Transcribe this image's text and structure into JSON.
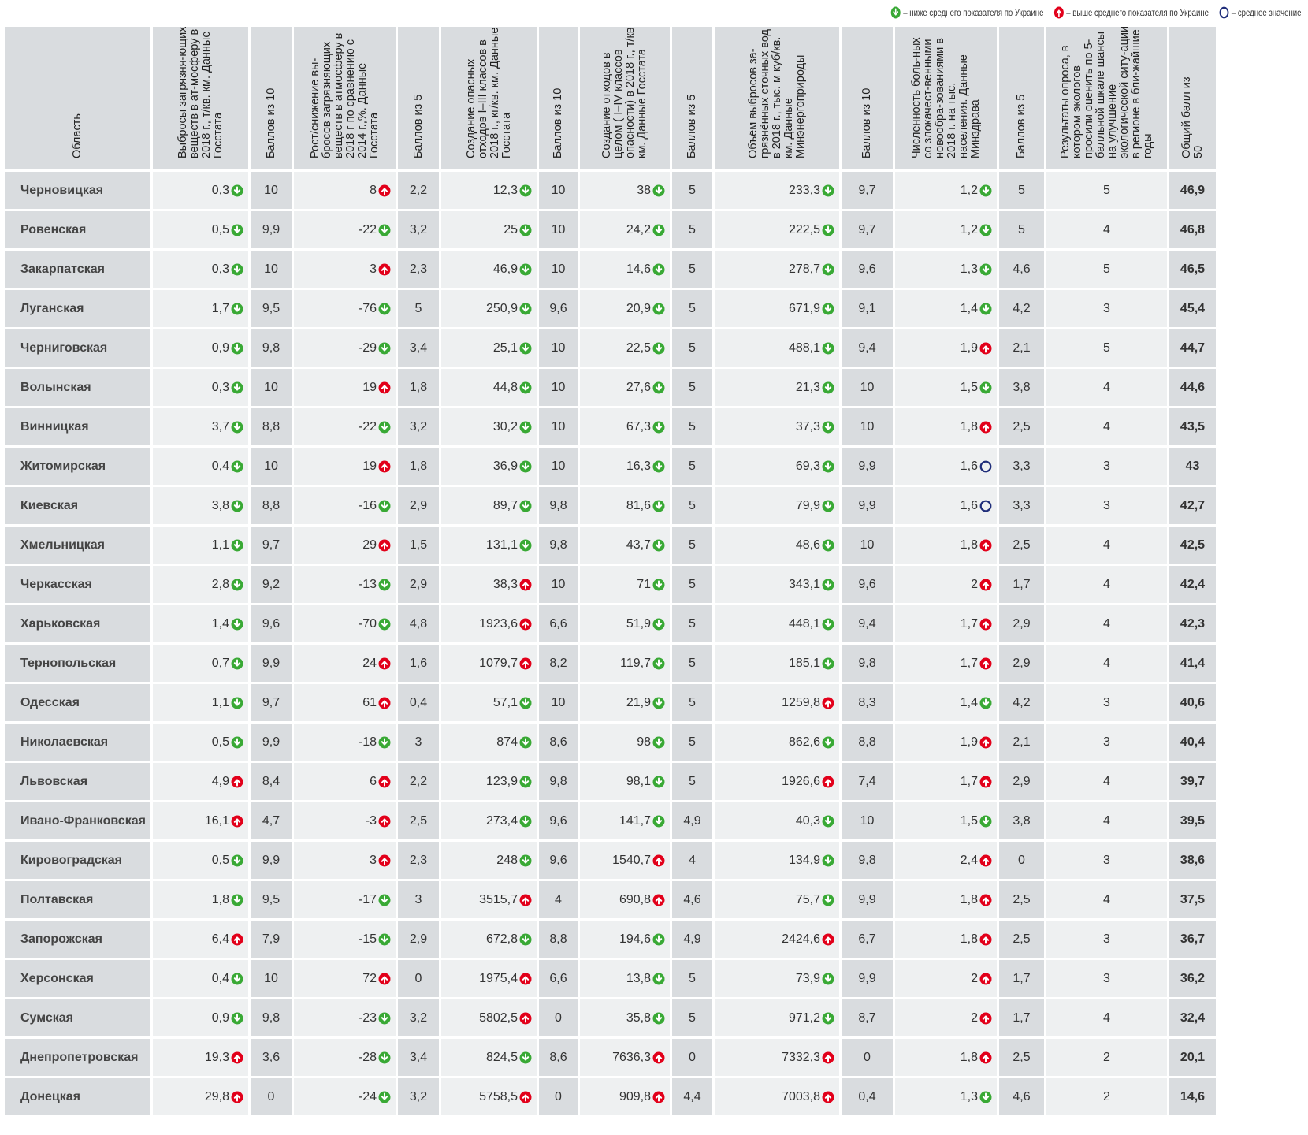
{
  "legend": {
    "below": "– ниже среднего показателя по Украине",
    "above": "– выше среднего показателя по Украине",
    "average": "– среднее значение"
  },
  "colors": {
    "down": "#39a935",
    "up": "#e2001a",
    "avg": "#1f2d7a",
    "header_bg": "#d9dcdf",
    "cell_bg": "#eef0f1"
  },
  "headers": [
    "Область",
    "Выбросы загрязня-ющих веществ в ат-мосферу в 2018 г., т/кв. км. Данные Госстата",
    "Баллов из 10",
    "Рост/снижение вы-бросов загрязняющих веществ в атмосферу в 2018 г по сравнению с 2014 г.,%. Данные Госстата",
    "Баллов из 5",
    "Создание опасных отходов I–III классов в 2018 г., кг/кв. км. Данные Госстата",
    "Баллов из 10",
    "Создание отходов в целом ( I–IV классов опасности) в 2018 г., т/кв. км. Данные Госстата",
    "Баллов из 5",
    "Объём выбросов за-грязнённых сточных вод в 2018 г., тыс. м куб/кв. км. Данные Минэнергоприроды",
    "Баллов из 10",
    "Численность боль-ных со злокачест-венными новообра-зованиями в 2018 г. на тыс. населения. Данные Минздрава",
    "Баллов из 5",
    "Результаты опроса, в котором экологов просили оценить по 5-балльной шкале шансы на улучшение экологической ситу-ации в регионе в бли-жайшие годы",
    "Общий балл из 50"
  ],
  "rows": [
    {
      "region": "Черновицкая",
      "c1": "0,3",
      "i1": "down",
      "s1": "10",
      "c2": "8",
      "i2": "up",
      "s2": "2,2",
      "c3": "12,3",
      "i3": "down",
      "s3": "10",
      "c4": "38",
      "i4": "down",
      "s4": "5",
      "c5": "233,3",
      "i5": "down",
      "s5": "9,7",
      "c6": "1,2",
      "i6": "down",
      "s6": "5",
      "survey": "5",
      "total": "46,9"
    },
    {
      "region": "Ровенская",
      "c1": "0,5",
      "i1": "down",
      "s1": "9,9",
      "c2": "-22",
      "i2": "down",
      "s2": "3,2",
      "c3": "25",
      "i3": "down",
      "s3": "10",
      "c4": "24,2",
      "i4": "down",
      "s4": "5",
      "c5": "222,5",
      "i5": "down",
      "s5": "9,7",
      "c6": "1,2",
      "i6": "down",
      "s6": "5",
      "survey": "4",
      "total": "46,8"
    },
    {
      "region": "Закарпатская",
      "c1": "0,3",
      "i1": "down",
      "s1": "10",
      "c2": "3",
      "i2": "up",
      "s2": "2,3",
      "c3": "46,9",
      "i3": "down",
      "s3": "10",
      "c4": "14,6",
      "i4": "down",
      "s4": "5",
      "c5": "278,7",
      "i5": "down",
      "s5": "9,6",
      "c6": "1,3",
      "i6": "down",
      "s6": "4,6",
      "survey": "5",
      "total": "46,5"
    },
    {
      "region": "Луганская",
      "c1": "1,7",
      "i1": "down",
      "s1": "9,5",
      "c2": "-76",
      "i2": "down",
      "s2": "5",
      "c3": "250,9",
      "i3": "down",
      "s3": "9,6",
      "c4": "20,9",
      "i4": "down",
      "s4": "5",
      "c5": "671,9",
      "i5": "down",
      "s5": "9,1",
      "c6": "1,4",
      "i6": "down",
      "s6": "4,2",
      "survey": "3",
      "total": "45,4"
    },
    {
      "region": "Черниговская",
      "c1": "0,9",
      "i1": "down",
      "s1": "9,8",
      "c2": "-29",
      "i2": "down",
      "s2": "3,4",
      "c3": "25,1",
      "i3": "down",
      "s3": "10",
      "c4": "22,5",
      "i4": "down",
      "s4": "5",
      "c5": "488,1",
      "i5": "down",
      "s5": "9,4",
      "c6": "1,9",
      "i6": "up",
      "s6": "2,1",
      "survey": "5",
      "total": "44,7"
    },
    {
      "region": "Волынская",
      "c1": "0,3",
      "i1": "down",
      "s1": "10",
      "c2": "19",
      "i2": "up",
      "s2": "1,8",
      "c3": "44,8",
      "i3": "down",
      "s3": "10",
      "c4": "27,6",
      "i4": "down",
      "s4": "5",
      "c5": "21,3",
      "i5": "down",
      "s5": "10",
      "c6": "1,5",
      "i6": "down",
      "s6": "3,8",
      "survey": "4",
      "total": "44,6"
    },
    {
      "region": "Винницкая",
      "c1": "3,7",
      "i1": "down",
      "s1": "8,8",
      "c2": "-22",
      "i2": "down",
      "s2": "3,2",
      "c3": "30,2",
      "i3": "down",
      "s3": "10",
      "c4": "67,3",
      "i4": "down",
      "s4": "5",
      "c5": "37,3",
      "i5": "down",
      "s5": "10",
      "c6": "1,8",
      "i6": "up",
      "s6": "2,5",
      "survey": "4",
      "total": "43,5"
    },
    {
      "region": "Житомирская",
      "c1": "0,4",
      "i1": "down",
      "s1": "10",
      "c2": "19",
      "i2": "up",
      "s2": "1,8",
      "c3": "36,9",
      "i3": "down",
      "s3": "10",
      "c4": "16,3",
      "i4": "down",
      "s4": "5",
      "c5": "69,3",
      "i5": "down",
      "s5": "9,9",
      "c6": "1,6",
      "i6": "avg",
      "s6": "3,3",
      "survey": "3",
      "total": "43"
    },
    {
      "region": "Киевская",
      "c1": "3,8",
      "i1": "down",
      "s1": "8,8",
      "c2": "-16",
      "i2": "down",
      "s2": "2,9",
      "c3": "89,7",
      "i3": "down",
      "s3": "9,8",
      "c4": "81,6",
      "i4": "down",
      "s4": "5",
      "c5": "79,9",
      "i5": "down",
      "s5": "9,9",
      "c6": "1,6",
      "i6": "avg",
      "s6": "3,3",
      "survey": "3",
      "total": "42,7"
    },
    {
      "region": "Хмельницкая",
      "c1": "1,1",
      "i1": "down",
      "s1": "9,7",
      "c2": "29",
      "i2": "up",
      "s2": "1,5",
      "c3": "131,1",
      "i3": "down",
      "s3": "9,8",
      "c4": "43,7",
      "i4": "down",
      "s4": "5",
      "c5": "48,6",
      "i5": "down",
      "s5": "10",
      "c6": "1,8",
      "i6": "up",
      "s6": "2,5",
      "survey": "4",
      "total": "42,5"
    },
    {
      "region": "Черкасская",
      "c1": "2,8",
      "i1": "down",
      "s1": "9,2",
      "c2": "-13",
      "i2": "down",
      "s2": "2,9",
      "c3": "38,3",
      "i3": "up",
      "s3": "10",
      "c4": "71",
      "i4": "down",
      "s4": "5",
      "c5": "343,1",
      "i5": "down",
      "s5": "9,6",
      "c6": "2",
      "i6": "up",
      "s6": "1,7",
      "survey": "4",
      "total": "42,4"
    },
    {
      "region": "Харьковская",
      "c1": "1,4",
      "i1": "down",
      "s1": "9,6",
      "c2": "-70",
      "i2": "down",
      "s2": "4,8",
      "c3": "1923,6",
      "i3": "up",
      "s3": "6,6",
      "c4": "51,9",
      "i4": "down",
      "s4": "5",
      "c5": "448,1",
      "i5": "down",
      "s5": "9,4",
      "c6": "1,7",
      "i6": "up",
      "s6": "2,9",
      "survey": "4",
      "total": "42,3"
    },
    {
      "region": "Тернопольская",
      "c1": "0,7",
      "i1": "down",
      "s1": "9,9",
      "c2": "24",
      "i2": "up",
      "s2": "1,6",
      "c3": "1079,7",
      "i3": "up",
      "s3": "8,2",
      "c4": "119,7",
      "i4": "down",
      "s4": "5",
      "c5": "185,1",
      "i5": "down",
      "s5": "9,8",
      "c6": "1,7",
      "i6": "up",
      "s6": "2,9",
      "survey": "4",
      "total": "41,4"
    },
    {
      "region": "Одесская",
      "c1": "1,1",
      "i1": "down",
      "s1": "9,7",
      "c2": "61",
      "i2": "up",
      "s2": "0,4",
      "c3": "57,1",
      "i3": "down",
      "s3": "10",
      "c4": "21,9",
      "i4": "down",
      "s4": "5",
      "c5": "1259,8",
      "i5": "up",
      "s5": "8,3",
      "c6": "1,4",
      "i6": "down",
      "s6": "4,2",
      "survey": "3",
      "total": "40,6"
    },
    {
      "region": "Николаевская",
      "c1": "0,5",
      "i1": "down",
      "s1": "9,9",
      "c2": "-18",
      "i2": "down",
      "s2": "3",
      "c3": "874",
      "i3": "down",
      "s3": "8,6",
      "c4": "98",
      "i4": "down",
      "s4": "5",
      "c5": "862,6",
      "i5": "down",
      "s5": "8,8",
      "c6": "1,9",
      "i6": "up",
      "s6": "2,1",
      "survey": "3",
      "total": "40,4"
    },
    {
      "region": "Львовская",
      "c1": "4,9",
      "i1": "up",
      "s1": "8,4",
      "c2": "6",
      "i2": "up",
      "s2": "2,2",
      "c3": "123,9",
      "i3": "down",
      "s3": "9,8",
      "c4": "98,1",
      "i4": "down",
      "s4": "5",
      "c5": "1926,6",
      "i5": "up",
      "s5": "7,4",
      "c6": "1,7",
      "i6": "up",
      "s6": "2,9",
      "survey": "4",
      "total": "39,7"
    },
    {
      "region": "Ивано-Франковская",
      "c1": "16,1",
      "i1": "up",
      "s1": "4,7",
      "c2": "-3",
      "i2": "up",
      "s2": "2,5",
      "c3": "273,4",
      "i3": "down",
      "s3": "9,6",
      "c4": "141,7",
      "i4": "down",
      "s4": "4,9",
      "c5": "40,3",
      "i5": "down",
      "s5": "10",
      "c6": "1,5",
      "i6": "down",
      "s6": "3,8",
      "survey": "4",
      "total": "39,5"
    },
    {
      "region": "Кировоградская",
      "c1": "0,5",
      "i1": "down",
      "s1": "9,9",
      "c2": "3",
      "i2": "up",
      "s2": "2,3",
      "c3": "248",
      "i3": "down",
      "s3": "9,6",
      "c4": "1540,7",
      "i4": "up",
      "s4": "4",
      "c5": "134,9",
      "i5": "down",
      "s5": "9,8",
      "c6": "2,4",
      "i6": "up",
      "s6": "0",
      "survey": "3",
      "total": "38,6"
    },
    {
      "region": "Полтавская",
      "c1": "1,8",
      "i1": "down",
      "s1": "9,5",
      "c2": "-17",
      "i2": "down",
      "s2": "3",
      "c3": "3515,7",
      "i3": "up",
      "s3": "4",
      "c4": "690,8",
      "i4": "up",
      "s4": "4,6",
      "c5": "75,7",
      "i5": "down",
      "s5": "9,9",
      "c6": "1,8",
      "i6": "up",
      "s6": "2,5",
      "survey": "4",
      "total": "37,5"
    },
    {
      "region": "Запорожская",
      "c1": "6,4",
      "i1": "up",
      "s1": "7,9",
      "c2": "-15",
      "i2": "down",
      "s2": "2,9",
      "c3": "672,8",
      "i3": "down",
      "s3": "8,8",
      "c4": "194,6",
      "i4": "down",
      "s4": "4,9",
      "c5": "2424,6",
      "i5": "up",
      "s5": "6,7",
      "c6": "1,8",
      "i6": "up",
      "s6": "2,5",
      "survey": "3",
      "total": "36,7"
    },
    {
      "region": "Херсонская",
      "c1": "0,4",
      "i1": "down",
      "s1": "10",
      "c2": "72",
      "i2": "up",
      "s2": "0",
      "c3": "1975,4",
      "i3": "up",
      "s3": "6,6",
      "c4": "13,8",
      "i4": "down",
      "s4": "5",
      "c5": "73,9",
      "i5": "down",
      "s5": "9,9",
      "c6": "2",
      "i6": "up",
      "s6": "1,7",
      "survey": "3",
      "total": "36,2"
    },
    {
      "region": "Сумская",
      "c1": "0,9",
      "i1": "down",
      "s1": "9,8",
      "c2": "-23",
      "i2": "down",
      "s2": "3,2",
      "c3": "5802,5",
      "i3": "up",
      "s3": "0",
      "c4": "35,8",
      "i4": "down",
      "s4": "5",
      "c5": "971,2",
      "i5": "down",
      "s5": "8,7",
      "c6": "2",
      "i6": "up",
      "s6": "1,7",
      "survey": "4",
      "total": "32,4"
    },
    {
      "region": "Днепропетровская",
      "c1": "19,3",
      "i1": "up",
      "s1": "3,6",
      "c2": "-28",
      "i2": "down",
      "s2": "3,4",
      "c3": "824,5",
      "i3": "down",
      "s3": "8,6",
      "c4": "7636,3",
      "i4": "up",
      "s4": "0",
      "c5": "7332,3",
      "i5": "up",
      "s5": "0",
      "c6": "1,8",
      "i6": "up",
      "s6": "2,5",
      "survey": "2",
      "total": "20,1"
    },
    {
      "region": "Донецкая",
      "c1": "29,8",
      "i1": "up",
      "s1": "0",
      "c2": "-24",
      "i2": "down",
      "s2": "3,2",
      "c3": "5758,5",
      "i3": "up",
      "s3": "0",
      "c4": "909,8",
      "i4": "up",
      "s4": "4,4",
      "c5": "7003,8",
      "i5": "up",
      "s5": "0,4",
      "c6": "1,3",
      "i6": "down",
      "s6": "4,6",
      "survey": "2",
      "total": "14,6"
    }
  ]
}
